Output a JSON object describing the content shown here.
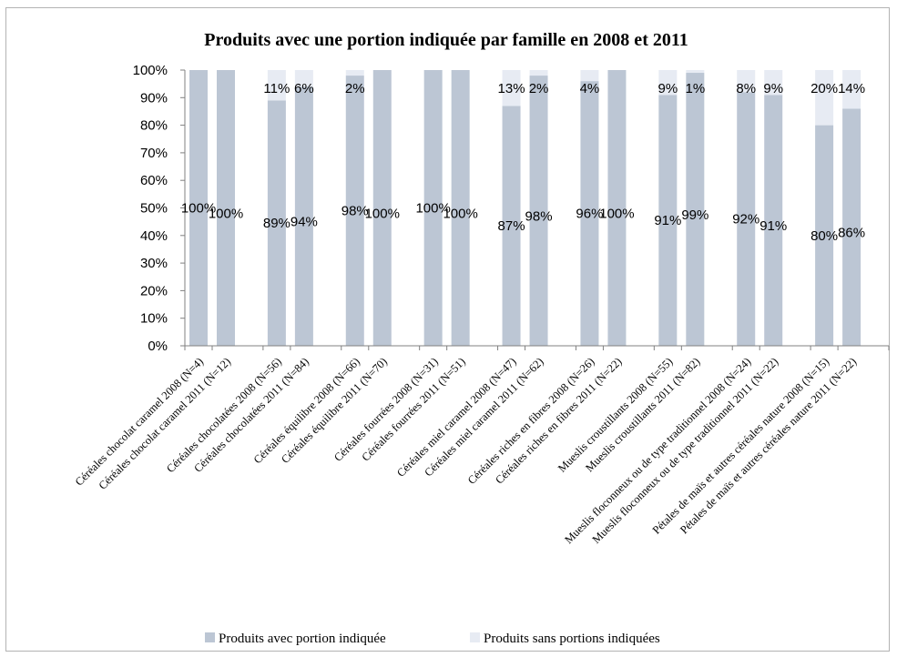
{
  "chart_data": {
    "type": "bar",
    "stacked": true,
    "percent": true,
    "title": "Produits avec une portion indiquée par famille en 2008 et 2011",
    "ylim": [
      0,
      100
    ],
    "yticks": [
      "0%",
      "10%",
      "20%",
      "30%",
      "40%",
      "50%",
      "60%",
      "70%",
      "80%",
      "90%",
      "100%"
    ],
    "grid": false,
    "legend_position": "bottom",
    "categories": [
      "Céréales chocolat caramel 2008 (N=4)",
      "Céréales chocolat caramel 2011 (N=12)",
      "Céréales chocolatées 2008 (N=56)",
      "Céréales chocolatées 2011 (N=84)",
      "Céréales équilibre 2008 (N=66)",
      "Céréales équilibre 2011 (N=70)",
      "Céréales fourrées 2008 (N=31)",
      "Céréales fourrées 2011 (N=51)",
      "Céréales miel caramel 2008 (N=47)",
      "Céréales miel caramel 2011 (N=62)",
      "Céréales riches en fibres 2008 (N=26)",
      "Céréales riches en fibres 2011 (N=22)",
      "Mueslis croustillants 2008 (N=55)",
      "Mueslis croustillants 2011 (N=82)",
      "Mueslis floconneux ou de type traditionnel 2008 (N=24)",
      "Mueslis floconneux ou de type traditionnel 2011 (N=22)",
      "Pétales de maïs et autres céréales nature 2008 (N=15)",
      "Pétales de maïs et autres céréales nature 2011 (N=22)"
    ],
    "series": [
      {
        "name": "Produits avec portion indiquée",
        "color": "#bcc6d4",
        "values": [
          100,
          100,
          89,
          94,
          98,
          100,
          100,
          100,
          87,
          98,
          96,
          100,
          91,
          99,
          92,
          91,
          80,
          86
        ],
        "labels": [
          "100%",
          "100%",
          "89%",
          "94%",
          "98%",
          "100%",
          "100%",
          "100%",
          "87%",
          "98%",
          "96%",
          "100%",
          "91%",
          "99%",
          "92%",
          "91%",
          "80%",
          "86%"
        ]
      },
      {
        "name": "Produits sans portions indiquées",
        "color": "#e7ebf3",
        "values": [
          0,
          0,
          11,
          6,
          2,
          0,
          0,
          0,
          13,
          2,
          4,
          0,
          9,
          1,
          8,
          9,
          20,
          14
        ],
        "labels": [
          "",
          "",
          "11%",
          "6%",
          "2%",
          "",
          "",
          "",
          "13%",
          "2%",
          "4%",
          "",
          "9%",
          "1%",
          "8%",
          "9%",
          "20%",
          "14%"
        ]
      }
    ]
  }
}
